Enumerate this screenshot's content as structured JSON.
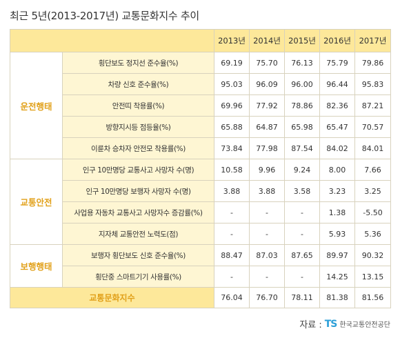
{
  "title": "최근 5년(2013-2017년) 교통문화지수 추이",
  "years": [
    "2013년",
    "2014년",
    "2015년",
    "2016년",
    "2017년"
  ],
  "groups": [
    {
      "category": "운전행태",
      "rows": [
        {
          "item": "횡단보도 정지선 준수율(%)",
          "values": [
            "69.19",
            "75.70",
            "76.13",
            "75.79",
            "79.86"
          ]
        },
        {
          "item": "차량 신호 준수율(%)",
          "values": [
            "95.03",
            "96.09",
            "96.00",
            "96.44",
            "95.83"
          ]
        },
        {
          "item": "안전띠 착용률(%)",
          "values": [
            "69.96",
            "77.92",
            "78.86",
            "82.36",
            "87.21"
          ]
        },
        {
          "item": "방향지시등 점등율(%)",
          "values": [
            "65.88",
            "64.87",
            "65.98",
            "65.47",
            "70.57"
          ]
        },
        {
          "item": "이륜차 승차자 안전모 착용률(%)",
          "values": [
            "73.84",
            "77.98",
            "87.54",
            "84.02",
            "84.01"
          ]
        }
      ]
    },
    {
      "category": "교통안전",
      "rows": [
        {
          "item": "인구 10만명당 교통사고 사망자 수(명)",
          "values": [
            "10.58",
            "9.96",
            "9.24",
            "8.00",
            "7.66"
          ]
        },
        {
          "item": "인구 10만명당 보행자 사망자 수(명)",
          "values": [
            "3.88",
            "3.88",
            "3.58",
            "3.23",
            "3.25"
          ]
        },
        {
          "item": "사업용 자동차 교통사고 사망자수 증감률(%)",
          "values": [
            "-",
            "-",
            "-",
            "1.38",
            "-5.50"
          ]
        },
        {
          "item": "지자체 교통안전 노력도(점)",
          "values": [
            "-",
            "-",
            "-",
            "5.93",
            "5.36"
          ]
        }
      ]
    },
    {
      "category": "보행행태",
      "rows": [
        {
          "item": "보행자 횡단보도 신호 준수율(%)",
          "values": [
            "88.47",
            "87.03",
            "87.65",
            "89.97",
            "90.32"
          ]
        },
        {
          "item": "횡단중 스마트기기 사용률(%)",
          "values": [
            "-",
            "-",
            "-",
            "14.25",
            "13.15"
          ]
        }
      ]
    }
  ],
  "total": {
    "label": "교통문화지수",
    "values": [
      "76.04",
      "76.70",
      "78.11",
      "81.38",
      "81.56"
    ]
  },
  "source": {
    "label": "자료 :",
    "logo_text": "TS",
    "org": "한국교통안전공단"
  },
  "colors": {
    "header_bg": "#fde89a",
    "item_bg": "#fef6d3",
    "category_text": "#e1a019",
    "border": "#d8d2bd",
    "logo_blue": "#2b9fd8",
    "logo_yellow": "#f2b41c"
  }
}
